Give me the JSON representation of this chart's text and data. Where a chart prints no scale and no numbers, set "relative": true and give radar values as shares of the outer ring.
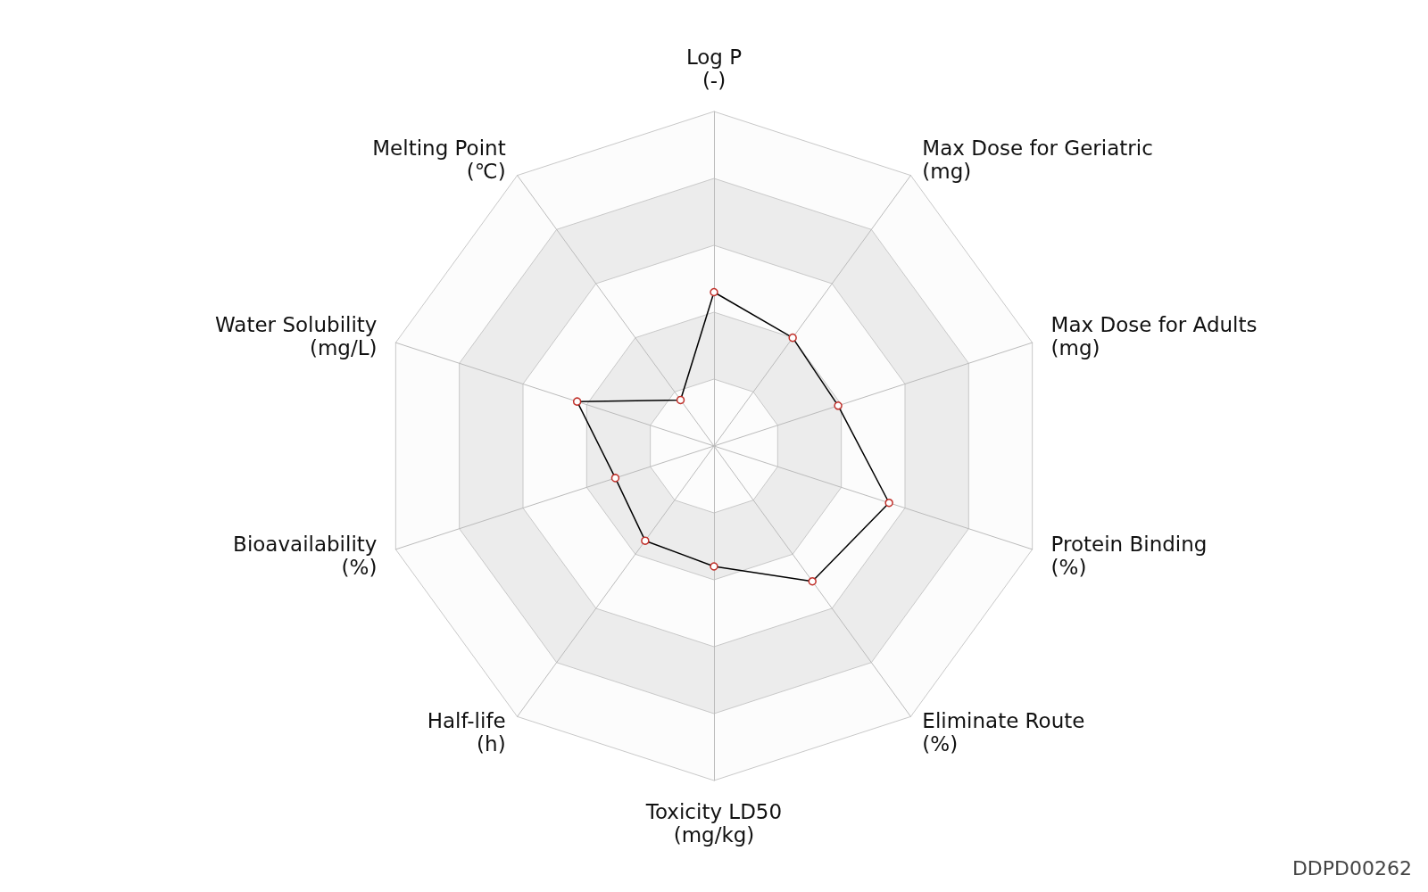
{
  "chart_data": {
    "type": "radar",
    "relative": true,
    "categories": [
      "Log P\n(-)",
      "Max Dose for Geriatric\n(mg)",
      "Max Dose for Adults\n(mg)",
      "Protein Binding\n(%)",
      "Eliminate Route\n(%)",
      "Toxicity LD50\n(mg/kg)",
      "Half-life\n(h)",
      "Bioavailability\n(%)",
      "Water Solubility\n(mg/L)",
      "Melting Point\n(℃)"
    ],
    "series": [
      {
        "color": "#000000",
        "values": [
          0.46,
          0.4,
          0.39,
          0.55,
          0.5,
          0.36,
          0.35,
          0.31,
          0.43,
          0.17
        ]
      }
    ],
    "marker": "circle",
    "annotations": [
      "DDPD00262"
    ]
  }
}
